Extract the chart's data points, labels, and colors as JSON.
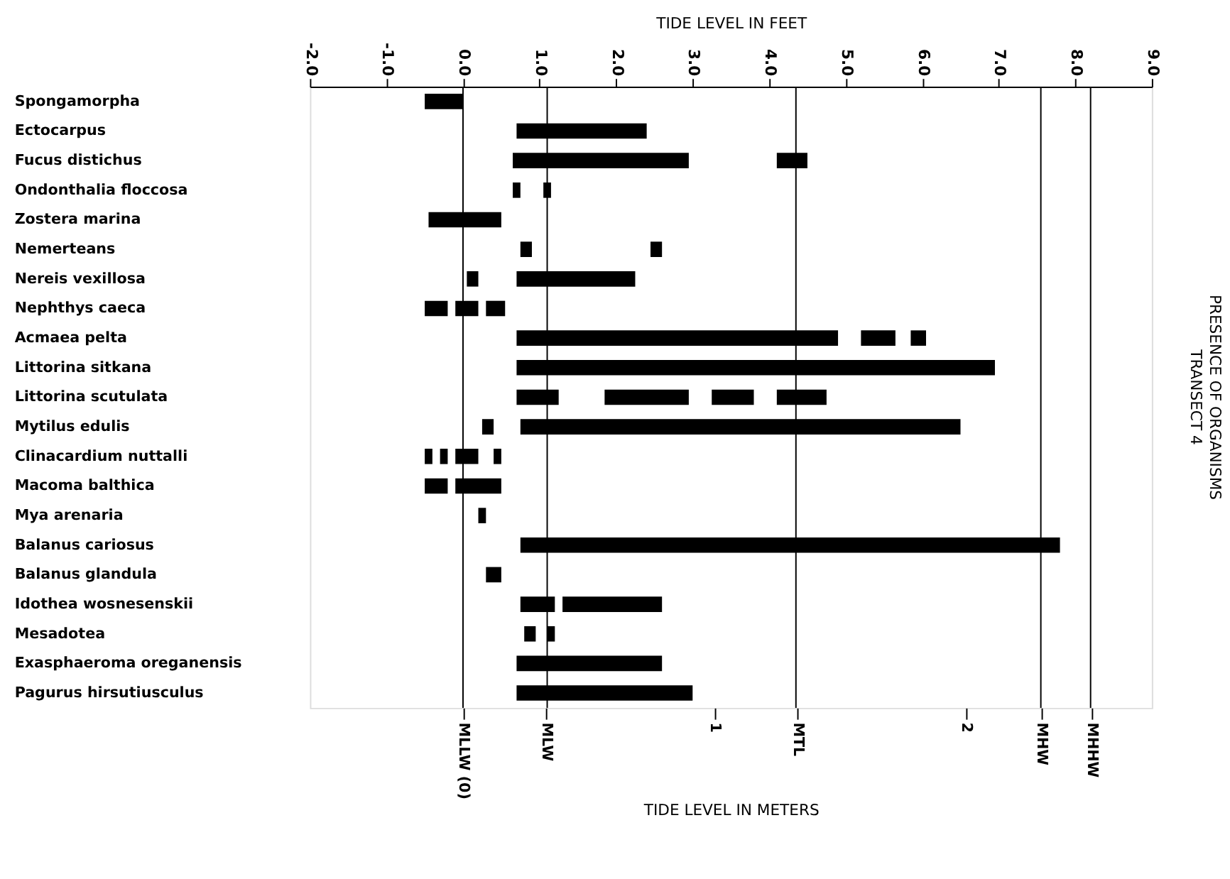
{
  "chart_data": {
    "type": "bar",
    "orientation": "horizontal",
    "title": "PRESENCE OF ORGANISMS",
    "subtitle": "TRANSECT 4",
    "xlabel": "TIDE LEVEL IN FEET",
    "x2label": "TIDE LEVEL IN METERS",
    "categories": [
      "Spongamorpha",
      "Ectocarpus",
      "Fucus distichus",
      "Ondonthalia floccosa",
      "Zostera marina",
      "Nemerteans",
      "Nereis vexillosa",
      "Nephthys caeca",
      "Acmaea pelta",
      "Littorina sitkana",
      "Littorina scutulata",
      "Mytilus edulis",
      "Clinacardium nuttalli",
      "Macoma balthica",
      "Mya arenaria",
      "Balanus cariosus",
      "Balanus glandula",
      "Idothea wosnesenskii",
      "Mesadotea",
      "Exasphaeroma oreganensis",
      "Pagurus hirsutiusculus"
    ],
    "xlim": [
      -2.0,
      9.0
    ],
    "xticks": [
      {
        "value": -2,
        "label": "-2.0"
      },
      {
        "value": -1,
        "label": "-1.0"
      },
      {
        "value": 0,
        "label": "0.0"
      },
      {
        "value": 1,
        "label": "1.0"
      },
      {
        "value": 2,
        "label": "2.0"
      },
      {
        "value": 3,
        "label": "3.0"
      },
      {
        "value": 4,
        "label": "4.0"
      },
      {
        "value": 5,
        "label": "5.0"
      },
      {
        "value": 6,
        "label": "6.0"
      },
      {
        "value": 7,
        "label": "7.0"
      },
      {
        "value": 8,
        "label": "8.0"
      },
      {
        "value": 9,
        "label": "9.0"
      }
    ],
    "x2lim": [
      -0.61,
      2.74
    ],
    "x2ticks": [
      {
        "value": 0,
        "label": "MLLW (0)"
      },
      {
        "value": 0.33,
        "label": "MLW"
      },
      1,
      {
        "value": 1.33,
        "label": "MTL"
      },
      2,
      {
        "value": 2.3,
        "label": "MHW"
      },
      {
        "value": 2.5,
        "label": "MHHW"
      }
    ],
    "ref_lines": [
      {
        "axis": "x",
        "value": 0,
        "color": "#000000"
      },
      {
        "axis": "x",
        "value": 1.1,
        "color": "#000000"
      },
      {
        "axis": "x",
        "value": 4.35,
        "color": "#000000"
      },
      {
        "axis": "x",
        "value": 7.55,
        "color": "#000000"
      },
      {
        "axis": "x",
        "value": 8.2,
        "color": "#000000"
      }
    ],
    "series": [
      {
        "color": "#000000",
        "base": [
          -0.5,
          0.7,
          0.65,
          0.65,
          -0.45,
          0.75,
          0.05,
          -0.5,
          0.7,
          0.7,
          0.7,
          0.25,
          -0.5,
          -0.5,
          0.2,
          0.75,
          0.3,
          0.75,
          0.8,
          0.7,
          0.7
        ],
        "values": [
          0.5,
          1.7,
          2.3,
          0.1,
          0.95,
          0.15,
          0.15,
          0.3,
          4.2,
          6.25,
          0.55,
          0.15,
          0.1,
          0.3,
          0.1,
          7.05,
          0.2,
          0.45,
          0.15,
          1.9,
          2.3
        ]
      },
      {
        "color": "#000000",
        "base": [
          null,
          null,
          4.1,
          1.05,
          null,
          2.45,
          0.7,
          -0.1,
          5.2,
          null,
          1.85,
          0.75,
          -0.3,
          -0.1,
          null,
          null,
          null,
          1.3,
          1.1,
          null,
          null
        ],
        "values": [
          null,
          null,
          0.4,
          0.1,
          null,
          0.15,
          1.55,
          0.3,
          0.45,
          null,
          1.1,
          5.75,
          0.1,
          0.6,
          null,
          null,
          null,
          1.3,
          0.1,
          null,
          null
        ]
      },
      {
        "color": "#000000",
        "base": [
          null,
          null,
          null,
          null,
          null,
          null,
          null,
          0.3,
          5.85,
          null,
          3.25,
          null,
          -0.1,
          null,
          null,
          null,
          null,
          null,
          null,
          null,
          null
        ],
        "values": [
          null,
          null,
          null,
          null,
          null,
          null,
          null,
          0.25,
          0.2,
          null,
          0.55,
          null,
          0.3,
          null,
          null,
          null,
          null,
          null,
          null,
          null,
          null
        ]
      },
      {
        "color": "#000000",
        "base": [
          null,
          null,
          null,
          null,
          null,
          null,
          null,
          null,
          null,
          null,
          4.1,
          null,
          0.4,
          null,
          null,
          null,
          null,
          null,
          null,
          null,
          null
        ],
        "values": [
          null,
          null,
          null,
          null,
          null,
          null,
          null,
          null,
          null,
          null,
          0.65,
          null,
          0.1,
          null,
          null,
          null,
          null,
          null,
          null,
          null,
          null
        ]
      }
    ]
  }
}
